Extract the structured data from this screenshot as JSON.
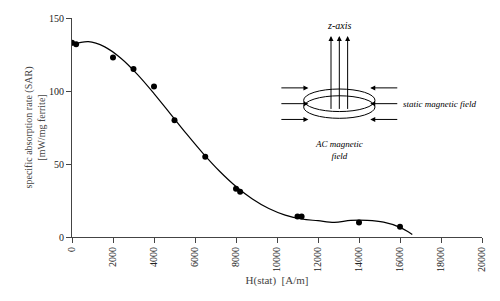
{
  "chart_data": {
    "type": "scatter",
    "xlabel": "H(stat)  [A/m]",
    "ylabel": "specific absorption rate (SAR)\n[mW/mg ferrite]",
    "series": [
      {
        "type": "line",
        "color": "black",
        "x": [
          0,
          800,
          1600,
          2400,
          3200,
          4000,
          4800,
          5600,
          6400,
          7200,
          8000,
          8800,
          9600,
          10400,
          11200,
          12000,
          12800,
          13600,
          14400,
          15200,
          16000,
          16400,
          16600
        ],
        "values": [
          131.54,
          133.81,
          130.23,
          122.28,
          111.24,
          98.27,
          84.38,
          70.43,
          57.13,
          45.04,
          34.59,
          26.04,
          19.52,
          15.0,
          12.33,
          11.16,
          10.04,
          11.35,
          11.36,
          10.13,
          6.62,
          3.64,
          1.77
        ]
      },
      {
        "type": "scatter",
        "color": "black",
        "x": [
          0,
          200,
          2000,
          3000,
          4000,
          5000,
          6500,
          8000,
          8200,
          11000,
          11200,
          14000,
          16000
        ],
        "values": [
          133,
          132,
          123,
          115,
          103,
          80,
          55,
          33,
          31,
          14,
          14,
          10,
          7
        ]
      }
    ],
    "xlim": [
      0,
      20000
    ],
    "ylim": [
      0,
      150
    ],
    "xticks": [
      0,
      2000,
      4000,
      6000,
      8000,
      10000,
      12000,
      14000,
      16000,
      18000,
      20000
    ],
    "yticks": [
      0,
      50,
      100,
      150
    ],
    "grid": false,
    "annotations": [
      "z-axis",
      "static magnetic field",
      "AC magnetic\nfield"
    ]
  }
}
